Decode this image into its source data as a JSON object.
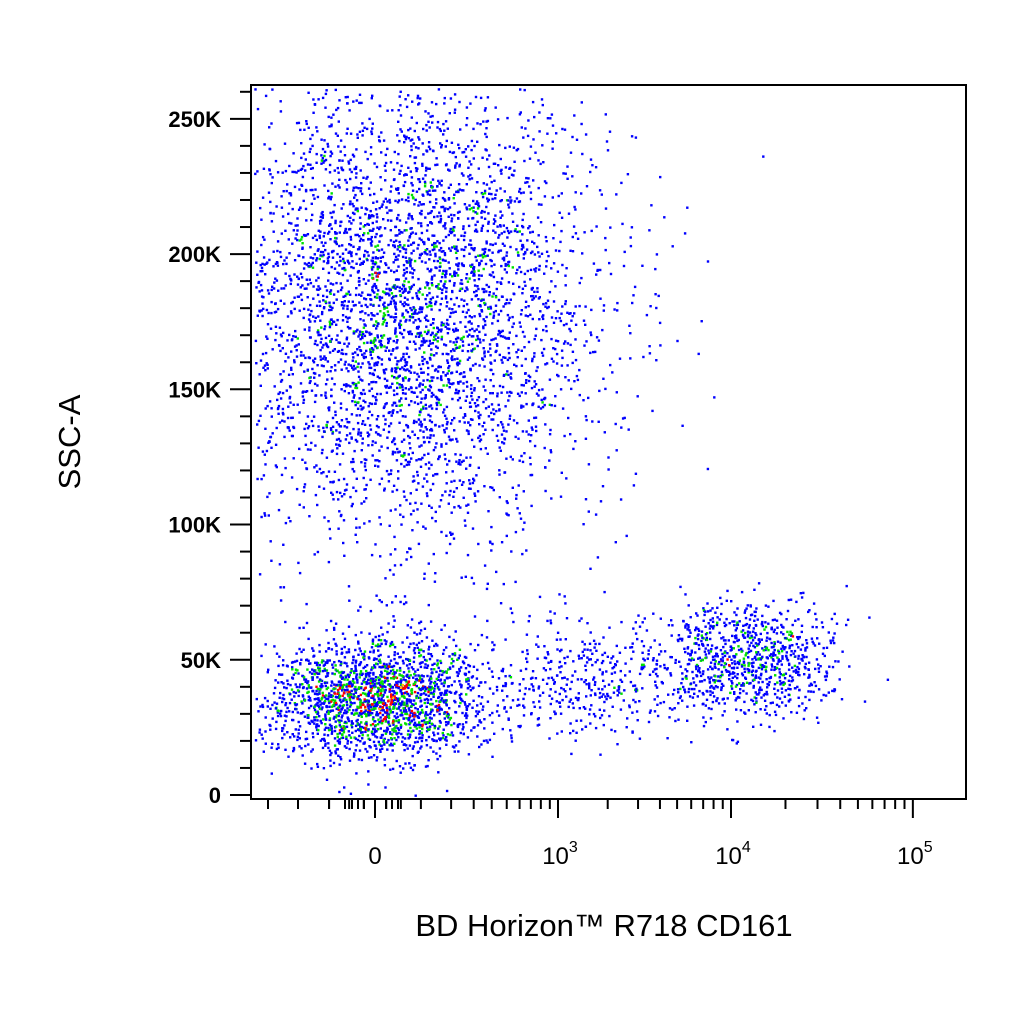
{
  "chart_data": {
    "type": "scatter",
    "plot_style": "flow-cytometry pseudocolor dot plot",
    "xlabel": "BD Horizon™ R718 CD161",
    "ylabel": "SSC-A",
    "x_scale": "biexponential",
    "y_scale": "linear",
    "xlim": [
      -200,
      100000
    ],
    "ylim": [
      0,
      262144
    ],
    "grid": false,
    "legend": "none",
    "x_ticks": [
      {
        "value": 0,
        "label": "0"
      },
      {
        "value": 1000,
        "label": "10",
        "exponent": "3"
      },
      {
        "value": 10000,
        "label": "10",
        "exponent": "4"
      },
      {
        "value": 100000,
        "label": "10",
        "exponent": "5"
      }
    ],
    "y_ticks": [
      {
        "value": 0,
        "label": "0"
      },
      {
        "value": 50000,
        "label": "50K"
      },
      {
        "value": 100000,
        "label": "100K"
      },
      {
        "value": 150000,
        "label": "150K"
      },
      {
        "value": 200000,
        "label": "200K"
      },
      {
        "value": 250000,
        "label": "250K"
      }
    ],
    "density_colors": {
      "low": "#0000ff",
      "mid": "#00e000",
      "high": "#ff0000",
      "peak": "#ffcc00"
    },
    "populations": [
      {
        "x_center": 60,
        "y_center": 180000,
        "x_spread_decades": 0.95,
        "y_spread": 42000,
        "events": 4300
      },
      {
        "x_center": 0,
        "y_center": 36000,
        "x_spread_decades": 0.55,
        "y_spread": 11000,
        "events": 2100
      },
      {
        "x_center": 12000,
        "y_center": 50000,
        "x_spread_decades": 0.45,
        "y_spread": 10000,
        "events": 900
      },
      {
        "x_center": 1500,
        "y_center": 43000,
        "x_spread_decades": 0.55,
        "y_spread": 11000,
        "events": 380
      }
    ]
  }
}
